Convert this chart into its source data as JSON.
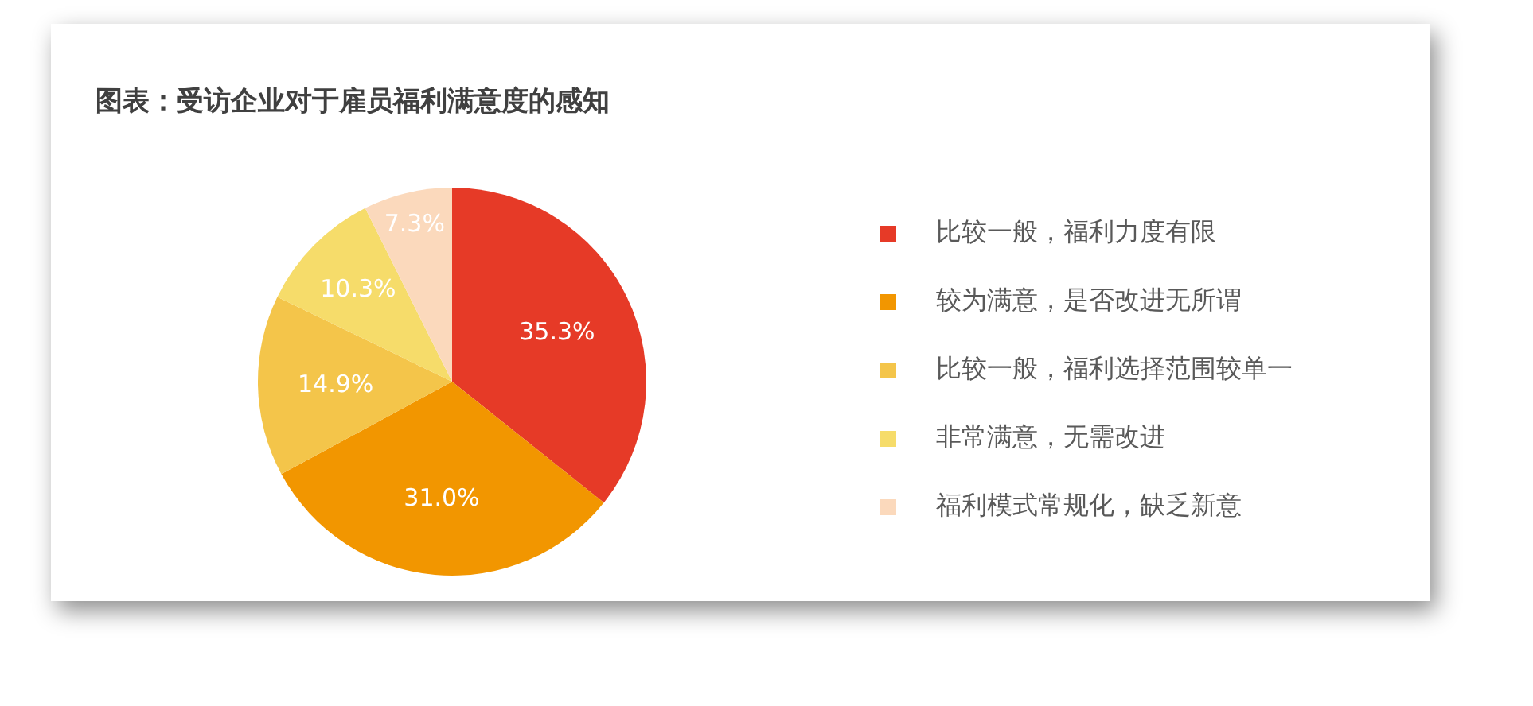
{
  "chart_data": {
    "type": "pie",
    "title": "图表：受访企业对于雇员福利满意度的感知",
    "categories": [
      "比较一般，福利力度有限",
      "较为满意，是否改进无所谓",
      "比较一般，福利选择范围较单一",
      "非常满意，无需改进",
      "福利模式常规化，缺乏新意"
    ],
    "values": [
      35.3,
      31.0,
      14.9,
      10.3,
      7.3
    ],
    "value_labels": [
      "35.3%",
      "31.0%",
      "14.9%",
      "10.3%",
      "7.3%"
    ],
    "colors": [
      "#e63a27",
      "#f29600",
      "#f4c54a",
      "#f6dc6a",
      "#fbd9bc"
    ],
    "legend": "right"
  }
}
